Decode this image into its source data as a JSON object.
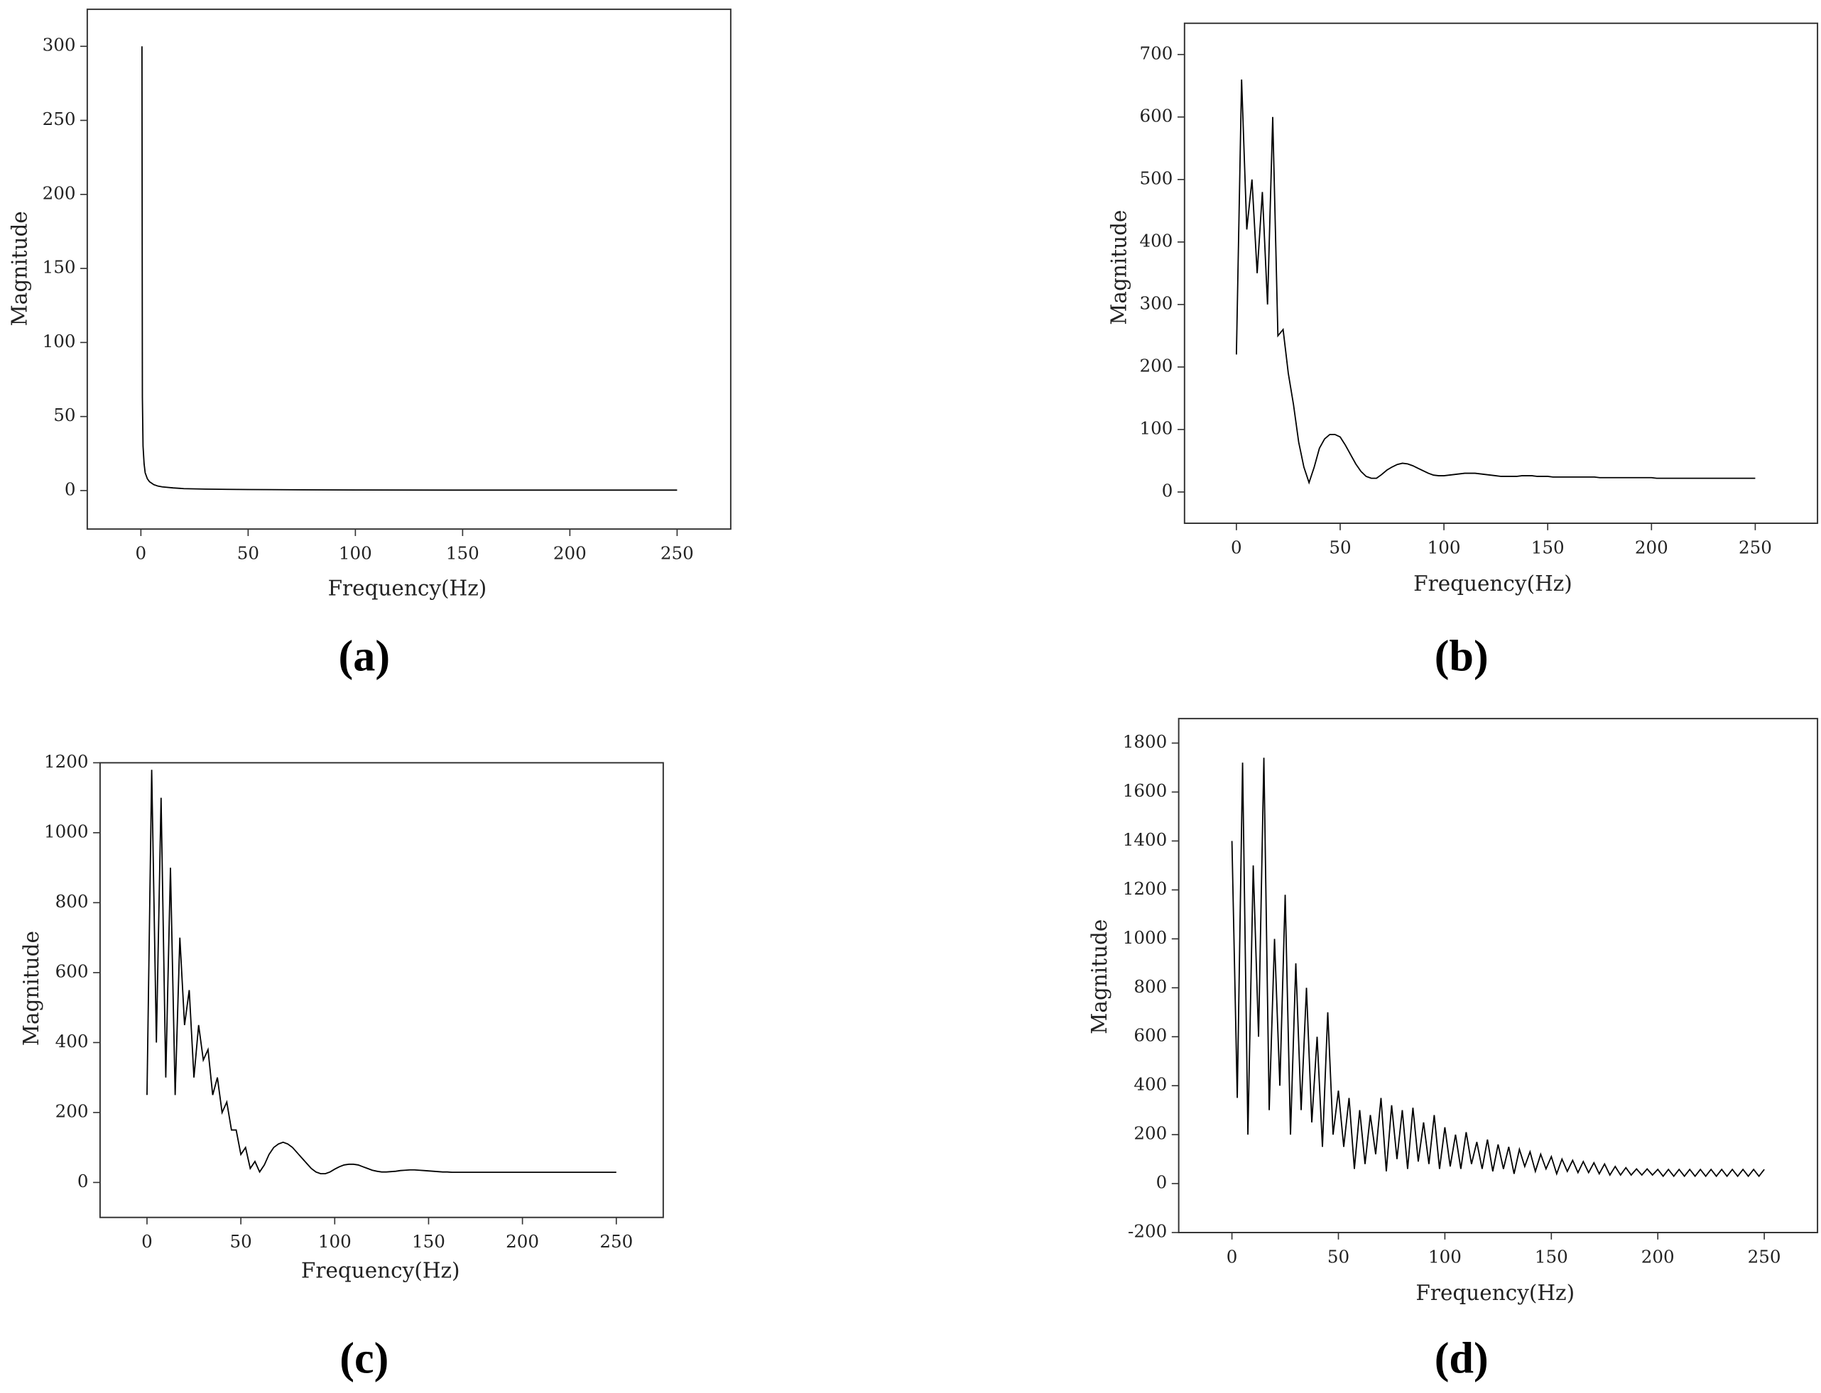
{
  "chart_data": [
    {
      "type": "line",
      "panel_label": "(a)",
      "x_label": "Frequency(Hz)",
      "y_label": "Magnitude",
      "x": [
        0.5,
        0.7,
        1,
        1.5,
        2,
        3,
        4,
        5,
        6,
        8,
        10,
        15,
        20,
        30,
        40,
        50,
        75,
        100,
        150,
        200,
        250
      ],
      "values": [
        300,
        63,
        30,
        18,
        12,
        8,
        6,
        5,
        4,
        3,
        2.5,
        1.8,
        1.3,
        1,
        0.8,
        0.7,
        0.5,
        0.4,
        0.3,
        0.3,
        0.3
      ],
      "color": "#000000",
      "xlim": [
        -25,
        275
      ],
      "ylim": [
        -26,
        325
      ],
      "xticks": [
        0,
        50,
        100,
        150,
        200,
        250
      ],
      "yticks": [
        0,
        50,
        100,
        150,
        200,
        250,
        300
      ]
    },
    {
      "type": "line",
      "panel_label": "(b)",
      "x_label": "Frequency(Hz)",
      "y_label": "Magnitude",
      "x": [
        0,
        2.5,
        5,
        7.5,
        10,
        12.5,
        15,
        17.5,
        20,
        22.5,
        25,
        27.5,
        30,
        32.5,
        35,
        37.5,
        40,
        42.5,
        45,
        47.5,
        50,
        52.5,
        55,
        57.5,
        60,
        62.5,
        65,
        67.5,
        70,
        72.5,
        75,
        77.5,
        80,
        82.5,
        85,
        87.5,
        90,
        92.5,
        95,
        97.5,
        100,
        102.5,
        105,
        107.5,
        110,
        112.5,
        115,
        117.5,
        120,
        122.5,
        125,
        127.5,
        130,
        132.5,
        135,
        137.5,
        140,
        142.5,
        145,
        147.5,
        150,
        152.5,
        155,
        157.5,
        160,
        162.5,
        165,
        167.5,
        170,
        172.5,
        175,
        177.5,
        180,
        182.5,
        185,
        187.5,
        190,
        192.5,
        195,
        197.5,
        200,
        202.5,
        205,
        207.5,
        210,
        212.5,
        215,
        217.5,
        220,
        222.5,
        225,
        227.5,
        230,
        232.5,
        235,
        237.5,
        240,
        242.5,
        245,
        247.5,
        250
      ],
      "values": [
        220,
        660,
        420,
        500,
        350,
        480,
        300,
        600,
        250,
        260,
        190,
        140,
        80,
        40,
        15,
        40,
        70,
        85,
        92,
        92,
        88,
        75,
        60,
        45,
        33,
        25,
        22,
        22,
        28,
        35,
        40,
        44,
        46,
        45,
        42,
        38,
        34,
        30,
        27,
        26,
        26,
        27,
        28,
        29,
        30,
        30,
        30,
        29,
        28,
        27,
        26,
        25,
        25,
        25,
        25,
        26,
        26,
        26,
        25,
        25,
        25,
        24,
        24,
        24,
        24,
        24,
        24,
        24,
        24,
        24,
        23,
        23,
        23,
        23,
        23,
        23,
        23,
        23,
        23,
        23,
        23,
        22,
        22,
        22,
        22,
        22,
        22,
        22,
        22,
        22,
        22,
        22,
        22,
        22,
        22,
        22,
        22,
        22,
        22,
        22,
        22
      ],
      "color": "#000000",
      "xlim": [
        -25,
        280
      ],
      "ylim": [
        -50,
        750
      ],
      "xticks": [
        0,
        50,
        100,
        150,
        200,
        250
      ],
      "yticks": [
        0,
        100,
        200,
        300,
        400,
        500,
        600,
        700
      ]
    },
    {
      "type": "line",
      "panel_label": "(c)",
      "x_label": "Frequency(Hz)",
      "y_label": "Magnitude",
      "x": [
        0,
        2.5,
        5,
        7.5,
        10,
        12.5,
        15,
        17.5,
        20,
        22.5,
        25,
        27.5,
        30,
        32.5,
        35,
        37.5,
        40,
        42.5,
        45,
        47.5,
        50,
        52.5,
        55,
        57.5,
        60,
        62.5,
        65,
        67.5,
        70,
        72.5,
        75,
        77.5,
        80,
        82.5,
        85,
        87.5,
        90,
        92.5,
        95,
        97.5,
        100,
        102.5,
        105,
        107.5,
        110,
        112.5,
        115,
        117.5,
        120,
        122.5,
        125,
        127.5,
        130,
        132.5,
        135,
        137.5,
        140,
        142.5,
        145,
        147.5,
        150,
        152.5,
        155,
        157.5,
        160,
        162.5,
        165,
        167.5,
        170,
        172.5,
        175,
        177.5,
        180,
        182.5,
        185,
        187.5,
        190,
        192.5,
        195,
        197.5,
        200,
        202.5,
        205,
        207.5,
        210,
        212.5,
        215,
        217.5,
        220,
        222.5,
        225,
        227.5,
        230,
        232.5,
        235,
        237.5,
        240,
        242.5,
        245,
        247.5,
        250
      ],
      "values": [
        250,
        1180,
        400,
        1100,
        300,
        900,
        250,
        700,
        450,
        550,
        300,
        450,
        350,
        380,
        250,
        300,
        200,
        230,
        150,
        150,
        80,
        100,
        40,
        60,
        30,
        50,
        80,
        100,
        110,
        115,
        110,
        100,
        85,
        70,
        55,
        40,
        30,
        25,
        25,
        30,
        38,
        45,
        50,
        52,
        52,
        50,
        45,
        40,
        35,
        32,
        30,
        30,
        31,
        32,
        34,
        35,
        36,
        36,
        35,
        34,
        33,
        32,
        31,
        30,
        30,
        29,
        29,
        29,
        29,
        29,
        29,
        29,
        29,
        29,
        29,
        29,
        29,
        29,
        29,
        29,
        29,
        29,
        29,
        29,
        29,
        29,
        29,
        29,
        29,
        29,
        29,
        29,
        29,
        29,
        29,
        29,
        29,
        29,
        29,
        29,
        29
      ],
      "color": "#000000",
      "xlim": [
        -25,
        275
      ],
      "ylim": [
        -100,
        1200
      ],
      "xticks": [
        0,
        50,
        100,
        150,
        200,
        250
      ],
      "yticks": [
        0,
        200,
        400,
        600,
        800,
        1000,
        1200
      ]
    },
    {
      "type": "line",
      "panel_label": "(d)",
      "x_label": "Frequency(Hz)",
      "y_label": "Magnitude",
      "x": [
        0,
        2.5,
        5,
        7.5,
        10,
        12.5,
        15,
        17.5,
        20,
        22.5,
        25,
        27.5,
        30,
        32.5,
        35,
        37.5,
        40,
        42.5,
        45,
        47.5,
        50,
        52.5,
        55,
        57.5,
        60,
        62.5,
        65,
        67.5,
        70,
        72.5,
        75,
        77.5,
        80,
        82.5,
        85,
        87.5,
        90,
        92.5,
        95,
        97.5,
        100,
        102.5,
        105,
        107.5,
        110,
        112.5,
        115,
        117.5,
        120,
        122.5,
        125,
        127.5,
        130,
        132.5,
        135,
        137.5,
        140,
        142.5,
        145,
        147.5,
        150,
        152.5,
        155,
        157.5,
        160,
        162.5,
        165,
        167.5,
        170,
        172.5,
        175,
        177.5,
        180,
        182.5,
        185,
        187.5,
        190,
        192.5,
        195,
        197.5,
        200,
        202.5,
        205,
        207.5,
        210,
        212.5,
        215,
        217.5,
        220,
        222.5,
        225,
        227.5,
        230,
        232.5,
        235,
        237.5,
        240,
        242.5,
        245,
        247.5,
        250
      ],
      "values": [
        1400,
        350,
        1720,
        200,
        1300,
        600,
        1740,
        300,
        1000,
        400,
        1180,
        200,
        900,
        300,
        800,
        250,
        600,
        150,
        700,
        200,
        380,
        150,
        350,
        60,
        300,
        80,
        280,
        120,
        350,
        50,
        320,
        100,
        300,
        60,
        310,
        90,
        250,
        80,
        280,
        60,
        230,
        70,
        200,
        60,
        210,
        80,
        170,
        60,
        180,
        50,
        160,
        60,
        150,
        40,
        140,
        70,
        130,
        50,
        120,
        60,
        110,
        40,
        100,
        50,
        95,
        45,
        90,
        45,
        85,
        40,
        80,
        35,
        70,
        35,
        65,
        35,
        60,
        35,
        60,
        35,
        58,
        30,
        58,
        30,
        58,
        30,
        58,
        30,
        58,
        30,
        58,
        30,
        58,
        30,
        58,
        30,
        58,
        30,
        58,
        30,
        58
      ],
      "color": "#000000",
      "xlim": [
        -25,
        275
      ],
      "ylim": [
        -200,
        1900
      ],
      "xticks": [
        0,
        50,
        100,
        150,
        200,
        250
      ],
      "yticks": [
        -200,
        0,
        200,
        400,
        600,
        800,
        1000,
        1200,
        1400,
        1600,
        1800
      ]
    }
  ]
}
